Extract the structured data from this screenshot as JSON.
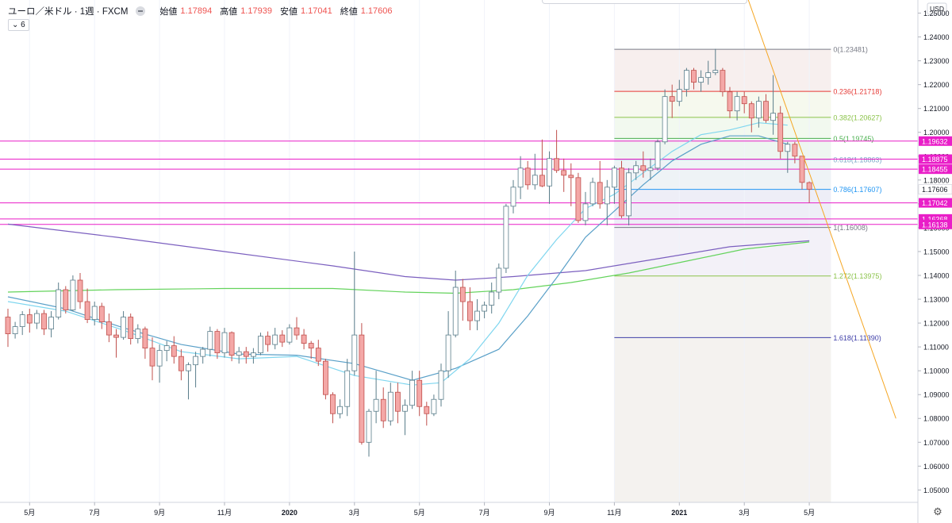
{
  "header": {
    "symbol_title": "ユーロ／米ドル · 1週 · FXCM",
    "ohlc": [
      {
        "key": "始値",
        "value": "1.17894"
      },
      {
        "key": "高値",
        "value": "1.17939"
      },
      {
        "key": "安値",
        "value": "1.17041"
      },
      {
        "key": "終値",
        "value": "1.17606"
      }
    ],
    "indicator_toggle": "⌄ 6"
  },
  "colors": {
    "up": "#26a69a",
    "up_fill": "#ffffff",
    "down": "#ef5350",
    "down_fill": "#f4a8a7",
    "candle_up_border": "#5a7d8a",
    "candle_down_border": "#c0504d",
    "horizontal_line": "#e91ec8",
    "trendline": "#f5a623",
    "ma_fast": "#7fd6ef",
    "ma_mid": "#5aa0c8",
    "ma_slow": "#64d35c",
    "ma_long": "#7b5fbf",
    "price_label_bg": "#e91ec8",
    "current_price_bg": "#ffffff"
  },
  "chart_data": {
    "type": "candlestick",
    "currency_label": "USD",
    "ylim": [
      1.0448,
      1.2555
    ],
    "y_ticks": [
      "1.25000",
      "1.24000",
      "1.23000",
      "1.22000",
      "1.21000",
      "1.20000",
      "1.19000",
      "1.18000",
      "1.17000",
      "1.16000",
      "1.15000",
      "1.14000",
      "1.13000",
      "1.12000",
      "1.11000",
      "1.10000",
      "1.09000",
      "1.08000",
      "1.07000",
      "1.06000",
      "1.05000"
    ],
    "x_ticks": [
      {
        "label": "5月",
        "week": 3
      },
      {
        "label": "7月",
        "week": 12
      },
      {
        "label": "9月",
        "week": 21
      },
      {
        "label": "11月",
        "week": 30
      },
      {
        "label": "2020",
        "week": 39
      },
      {
        "label": "3月",
        "week": 48
      },
      {
        "label": "5月",
        "week": 57
      },
      {
        "label": "7月",
        "week": 66
      },
      {
        "label": "9月",
        "week": 75
      },
      {
        "label": "11月",
        "week": 84
      },
      {
        "label": "2021",
        "week": 93
      },
      {
        "label": "3月",
        "week": 102
      },
      {
        "label": "5月",
        "week": 111
      }
    ],
    "x_domain_weeks": [
      0,
      121
    ],
    "candles": [
      [
        1.1225,
        1.126,
        1.11,
        1.1155
      ],
      [
        1.1155,
        1.1205,
        1.1135,
        1.1185
      ],
      [
        1.1185,
        1.125,
        1.115,
        1.1235
      ],
      [
        1.1235,
        1.126,
        1.116,
        1.12
      ],
      [
        1.12,
        1.1255,
        1.1175,
        1.124
      ],
      [
        1.124,
        1.1255,
        1.115,
        1.1175
      ],
      [
        1.1175,
        1.125,
        1.114,
        1.1225
      ],
      [
        1.1225,
        1.137,
        1.1215,
        1.134
      ],
      [
        1.134,
        1.1355,
        1.124,
        1.1255
      ],
      [
        1.1255,
        1.14,
        1.125,
        1.138
      ],
      [
        1.138,
        1.141,
        1.126,
        1.129
      ],
      [
        1.129,
        1.1345,
        1.12,
        1.1215
      ],
      [
        1.1215,
        1.129,
        1.119,
        1.127
      ],
      [
        1.127,
        1.1285,
        1.1175,
        1.1205
      ],
      [
        1.1205,
        1.124,
        1.112,
        1.115
      ],
      [
        1.115,
        1.1175,
        1.1055,
        1.114
      ],
      [
        1.114,
        1.125,
        1.113,
        1.1225
      ],
      [
        1.1225,
        1.124,
        1.111,
        1.1135
      ],
      [
        1.1135,
        1.1195,
        1.1115,
        1.1175
      ],
      [
        1.1175,
        1.1185,
        1.105,
        1.1095
      ],
      [
        1.1095,
        1.114,
        1.096,
        1.102
      ],
      [
        1.102,
        1.111,
        1.095,
        1.1085
      ],
      [
        1.1085,
        1.1125,
        1.104,
        1.1105
      ],
      [
        1.1105,
        1.1145,
        1.103,
        1.106
      ],
      [
        1.106,
        1.109,
        1.096,
        1.1
      ],
      [
        1.1,
        1.1035,
        1.088,
        1.1025
      ],
      [
        1.1025,
        1.108,
        1.093,
        1.106
      ],
      [
        1.106,
        1.11,
        1.103,
        1.109
      ],
      [
        1.109,
        1.1185,
        1.106,
        1.1165
      ],
      [
        1.1165,
        1.1175,
        1.105,
        1.1075
      ],
      [
        1.1075,
        1.118,
        1.1055,
        1.116
      ],
      [
        1.116,
        1.1165,
        1.104,
        1.1065
      ],
      [
        1.1065,
        1.11,
        1.103,
        1.108
      ],
      [
        1.108,
        1.11,
        1.103,
        1.106
      ],
      [
        1.106,
        1.1095,
        1.103,
        1.1075
      ],
      [
        1.1075,
        1.116,
        1.1065,
        1.1145
      ],
      [
        1.1145,
        1.1165,
        1.108,
        1.111
      ],
      [
        1.111,
        1.118,
        1.109,
        1.115
      ],
      [
        1.115,
        1.117,
        1.11,
        1.112
      ],
      [
        1.112,
        1.1195,
        1.111,
        1.118
      ],
      [
        1.118,
        1.1225,
        1.113,
        1.115
      ],
      [
        1.115,
        1.1175,
        1.109,
        1.1115
      ],
      [
        1.1115,
        1.1125,
        1.105,
        1.1095
      ],
      [
        1.1095,
        1.113,
        1.102,
        1.104
      ],
      [
        1.104,
        1.105,
        1.088,
        1.09
      ],
      [
        1.09,
        1.091,
        1.078,
        1.082
      ],
      [
        1.082,
        1.088,
        1.08,
        1.085
      ],
      [
        1.085,
        1.105,
        1.081,
        1.1
      ],
      [
        1.1,
        1.15,
        1.098,
        1.115
      ],
      [
        1.115,
        1.12,
        1.069,
        1.07
      ],
      [
        1.07,
        1.084,
        1.064,
        1.083
      ],
      [
        1.083,
        1.1,
        1.078,
        1.088
      ],
      [
        1.088,
        1.093,
        1.076,
        1.079
      ],
      [
        1.079,
        1.095,
        1.077,
        1.091
      ],
      [
        1.091,
        1.095,
        1.078,
        1.083
      ],
      [
        1.083,
        1.088,
        1.073,
        1.0855
      ],
      [
        1.0855,
        1.1,
        1.084,
        1.096
      ],
      [
        1.096,
        1.1,
        1.081,
        1.085
      ],
      [
        1.085,
        1.087,
        1.077,
        1.082
      ],
      [
        1.082,
        1.09,
        1.081,
        1.088
      ],
      [
        1.088,
        1.103,
        1.085,
        1.1
      ],
      [
        1.1,
        1.125,
        1.097,
        1.115
      ],
      [
        1.115,
        1.142,
        1.114,
        1.135
      ],
      [
        1.135,
        1.1385,
        1.121,
        1.129
      ],
      [
        1.129,
        1.135,
        1.117,
        1.121
      ],
      [
        1.121,
        1.13,
        1.117,
        1.125
      ],
      [
        1.125,
        1.129,
        1.122,
        1.1275
      ],
      [
        1.1275,
        1.137,
        1.124,
        1.133
      ],
      [
        1.133,
        1.145,
        1.13,
        1.143
      ],
      [
        1.143,
        1.17,
        1.141,
        1.169
      ],
      [
        1.169,
        1.18,
        1.166,
        1.177
      ],
      [
        1.177,
        1.19,
        1.172,
        1.185
      ],
      [
        1.185,
        1.188,
        1.176,
        1.178
      ],
      [
        1.178,
        1.191,
        1.176,
        1.182
      ],
      [
        1.182,
        1.197,
        1.177,
        1.1775
      ],
      [
        1.1775,
        1.192,
        1.17,
        1.189
      ],
      [
        1.189,
        1.201,
        1.183,
        1.184
      ],
      [
        1.184,
        1.189,
        1.175,
        1.182
      ],
      [
        1.182,
        1.187,
        1.169,
        1.181
      ],
      [
        1.181,
        1.183,
        1.162,
        1.163
      ],
      [
        1.163,
        1.175,
        1.161,
        1.17
      ],
      [
        1.17,
        1.181,
        1.169,
        1.179
      ],
      [
        1.179,
        1.188,
        1.168,
        1.17
      ],
      [
        1.17,
        1.18,
        1.161,
        1.177
      ],
      [
        1.177,
        1.186,
        1.17,
        1.185
      ],
      [
        1.185,
        1.188,
        1.164,
        1.165
      ],
      [
        1.165,
        1.185,
        1.161,
        1.183
      ],
      [
        1.183,
        1.188,
        1.18,
        1.186
      ],
      [
        1.186,
        1.192,
        1.181,
        1.184
      ],
      [
        1.184,
        1.189,
        1.18,
        1.185
      ],
      [
        1.185,
        1.197,
        1.184,
        1.196
      ],
      [
        1.196,
        1.218,
        1.195,
        1.215
      ],
      [
        1.215,
        1.22,
        1.206,
        1.213
      ],
      [
        1.213,
        1.222,
        1.211,
        1.218
      ],
      [
        1.218,
        1.227,
        1.215,
        1.226
      ],
      [
        1.226,
        1.227,
        1.218,
        1.221
      ],
      [
        1.221,
        1.226,
        1.217,
        1.223
      ],
      [
        1.223,
        1.23,
        1.22,
        1.225
      ],
      [
        1.225,
        1.235,
        1.224,
        1.226
      ],
      [
        1.226,
        1.227,
        1.215,
        1.217
      ],
      [
        1.217,
        1.219,
        1.206,
        1.209
      ],
      [
        1.209,
        1.217,
        1.205,
        1.215
      ],
      [
        1.215,
        1.217,
        1.208,
        1.212
      ],
      [
        1.212,
        1.213,
        1.2,
        1.206
      ],
      [
        1.206,
        1.215,
        1.202,
        1.213
      ],
      [
        1.213,
        1.216,
        1.204,
        1.205
      ],
      [
        1.205,
        1.224,
        1.199,
        1.208
      ],
      [
        1.208,
        1.211,
        1.189,
        1.192
      ],
      [
        1.192,
        1.196,
        1.183,
        1.195
      ],
      [
        1.195,
        1.196,
        1.187,
        1.19
      ],
      [
        1.19,
        1.19,
        1.176,
        1.179
      ],
      [
        1.1789,
        1.1794,
        1.1704,
        1.1761
      ]
    ],
    "horizontal_lines": [
      {
        "value": 1.19632,
        "label": "1.19632"
      },
      {
        "value": 1.18875,
        "label": "1.18875"
      },
      {
        "value": 1.18455,
        "label": "1.18455"
      },
      {
        "value": 1.17042,
        "label": "1.17042"
      },
      {
        "value": 1.16368,
        "label": "1.16368"
      },
      {
        "value": 1.16138,
        "label": "1.16138"
      }
    ],
    "current_price": {
      "value": 1.17606,
      "label": "1.17606"
    },
    "fibonacci": {
      "start_week": 84,
      "end_week": 114,
      "levels": [
        {
          "ratio": "0",
          "value": 1.23481,
          "label": "0(1.23481)",
          "color": "#787b86",
          "fill": "#f7efee"
        },
        {
          "ratio": "0.236",
          "value": 1.21718,
          "label": "0.236(1.21718)",
          "color": "#e53935",
          "fill": "#f6f9ee"
        },
        {
          "ratio": "0.382",
          "value": 1.20627,
          "label": "0.382(1.20627)",
          "color": "#8bc34a",
          "fill": "#f2f9ef"
        },
        {
          "ratio": "0.5",
          "value": 1.19745,
          "label": "0.5(1.19745)",
          "color": "#4caf50",
          "fill": "#eef5f1"
        },
        {
          "ratio": "0.618",
          "value": 1.18863,
          "label": "0.618(1.18863)",
          "color": "#7fa8c8",
          "fill": "#eef3f6"
        },
        {
          "ratio": "0.786",
          "value": 1.17607,
          "label": "0.786(1.17607)",
          "color": "#2196f3",
          "fill": "#eeeef7"
        },
        {
          "ratio": "1",
          "value": 1.16008,
          "label": "1(1.16008)",
          "color": "#787b86",
          "fill": "#f3f1f8"
        },
        {
          "ratio": "1.272",
          "value": 1.13975,
          "label": "1.272(1.13975)",
          "color": "#8bc34a",
          "fill": "#f4f3f1"
        },
        {
          "ratio": "1.618",
          "value": 1.1139,
          "label": "1.618(1.11390)",
          "color": "#3f3fa8",
          "fill": "#f4f2ef"
        }
      ]
    },
    "trendline": {
      "points": [
        [
          102.5,
          1.256
        ],
        [
          123.0,
          1.08
        ]
      ]
    },
    "moving_averages": [
      {
        "key": "ma_long",
        "points": [
          [
            0,
            1.1615
          ],
          [
            15,
            1.156
          ],
          [
            30,
            1.15
          ],
          [
            45,
            1.144
          ],
          [
            55,
            1.1395
          ],
          [
            62,
            1.138
          ],
          [
            70,
            1.1395
          ],
          [
            80,
            1.142
          ],
          [
            90,
            1.147
          ],
          [
            100,
            1.152
          ],
          [
            111,
            1.1545
          ]
        ]
      },
      {
        "key": "ma_slow",
        "points": [
          [
            0,
            1.133
          ],
          [
            15,
            1.134
          ],
          [
            30,
            1.1345
          ],
          [
            45,
            1.1345
          ],
          [
            55,
            1.133
          ],
          [
            62,
            1.1325
          ],
          [
            70,
            1.134
          ],
          [
            78,
            1.137
          ],
          [
            86,
            1.141
          ],
          [
            94,
            1.146
          ],
          [
            102,
            1.151
          ],
          [
            111,
            1.154
          ]
        ]
      },
      {
        "key": "ma_mid",
        "points": [
          [
            0,
            1.131
          ],
          [
            8,
            1.126
          ],
          [
            16,
            1.118
          ],
          [
            24,
            1.111
          ],
          [
            32,
            1.107
          ],
          [
            40,
            1.1065
          ],
          [
            48,
            1.103
          ],
          [
            56,
            1.096
          ],
          [
            62,
            1.101
          ],
          [
            68,
            1.109
          ],
          [
            72,
            1.123
          ],
          [
            76,
            1.139
          ],
          [
            80,
            1.156
          ],
          [
            84,
            1.167
          ],
          [
            88,
            1.178
          ],
          [
            92,
            1.188
          ],
          [
            96,
            1.195
          ],
          [
            100,
            1.1985
          ],
          [
            104,
            1.1985
          ],
          [
            108,
            1.195
          ]
        ]
      },
      {
        "key": "ma_fast",
        "points": [
          [
            0,
            1.129
          ],
          [
            8,
            1.125
          ],
          [
            16,
            1.117
          ],
          [
            24,
            1.108
          ],
          [
            32,
            1.105
          ],
          [
            40,
            1.106
          ],
          [
            48,
            1.098
          ],
          [
            56,
            1.094
          ],
          [
            60,
            1.095
          ],
          [
            64,
            1.105
          ],
          [
            68,
            1.12
          ],
          [
            72,
            1.14
          ],
          [
            76,
            1.155
          ],
          [
            80,
            1.168
          ],
          [
            84,
            1.174
          ],
          [
            88,
            1.183
          ],
          [
            92,
            1.192
          ],
          [
            96,
            1.199
          ],
          [
            100,
            1.201
          ],
          [
            104,
            1.204
          ],
          [
            108,
            1.203
          ]
        ]
      }
    ]
  }
}
